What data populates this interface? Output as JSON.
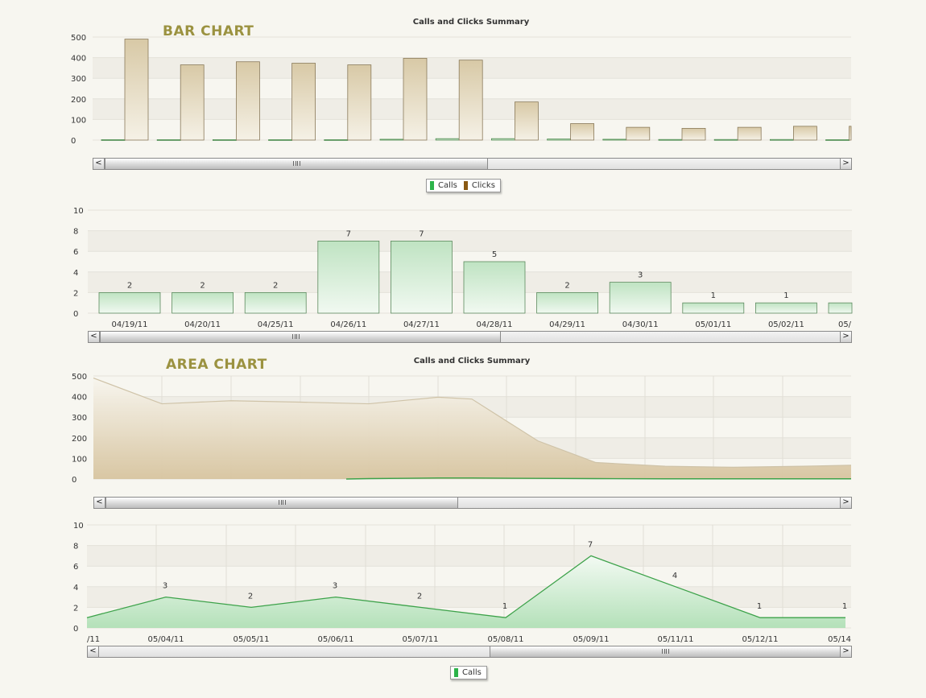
{
  "labels": {
    "bar_section": "BAR CHART",
    "area_section": "AREA CHART",
    "bar_title": "Calls and Clicks Summary",
    "area_title": "Calls and Clicks Summary"
  },
  "legend_top": [
    {
      "name": "Calls",
      "color": "#2db34a"
    },
    {
      "name": "Clicks",
      "color": "#8a5a14"
    }
  ],
  "legend_bottom": [
    {
      "name": "Calls",
      "color": "#2db34a"
    }
  ],
  "scroll": {
    "left_arrow": "<",
    "right_arrow": ">"
  },
  "chart_data": [
    {
      "type": "bar",
      "title": "Calls and Clicks Summary",
      "ylim": [
        0,
        500
      ],
      "yticks": [
        0,
        100,
        200,
        300,
        400,
        500
      ],
      "grid": true,
      "series": [
        {
          "name": "Calls",
          "color": "#2db34a",
          "values": [
            0,
            0,
            0,
            0,
            0,
            2,
            5,
            5,
            3,
            2,
            1,
            1,
            1,
            0
          ]
        },
        {
          "name": "Clicks",
          "color": "#8a5a14",
          "values": [
            490,
            365,
            380,
            373,
            365,
            397,
            388,
            185,
            80,
            62,
            57,
            62,
            67,
            67
          ]
        }
      ]
    },
    {
      "type": "bar",
      "ylim": [
        0,
        10
      ],
      "yticks": [
        0,
        2,
        4,
        6,
        8,
        10
      ],
      "grid": true,
      "categories": [
        "04/19/11",
        "04/20/11",
        "04/25/11",
        "04/26/11",
        "04/27/11",
        "04/28/11",
        "04/29/11",
        "04/30/11",
        "05/01/11",
        "05/02/11",
        "05/"
      ],
      "series": [
        {
          "name": "Calls",
          "values": [
            2,
            2,
            2,
            7,
            7,
            5,
            2,
            3,
            1,
            1,
            1
          ]
        }
      ],
      "data_labels": [
        "2",
        "2",
        "2",
        "7",
        "7",
        "5",
        "2",
        "3",
        "1",
        "1",
        ""
      ]
    },
    {
      "type": "area",
      "title": "Calls and Clicks Summary",
      "ylim": [
        0,
        500
      ],
      "yticks": [
        0,
        100,
        200,
        300,
        400,
        500
      ],
      "grid": true,
      "series": [
        {
          "name": "Clicks",
          "color": "#8a5a14",
          "values": [
            490,
            365,
            380,
            373,
            365,
            397,
            388,
            185,
            80,
            62,
            57,
            62,
            67
          ]
        },
        {
          "name": "Calls",
          "color": "#2db34a",
          "values": [
            null,
            null,
            null,
            0,
            2,
            5,
            5,
            3,
            2,
            1,
            1,
            1,
            1
          ]
        }
      ]
    },
    {
      "type": "area",
      "ylim": [
        0,
        10
      ],
      "yticks": [
        0,
        2,
        4,
        6,
        8,
        10
      ],
      "grid": true,
      "categories": [
        "/11",
        "05/04/11",
        "05/05/11",
        "05/06/11",
        "05/07/11",
        "05/08/11",
        "05/09/11",
        "05/11/11",
        "05/12/11",
        "05/14"
      ],
      "series": [
        {
          "name": "Calls",
          "values": [
            1,
            3,
            2,
            3,
            2,
            1,
            7,
            4,
            1,
            1
          ]
        }
      ],
      "data_labels": [
        "",
        "3",
        "2",
        "3",
        "2",
        "1",
        "7",
        "4",
        "1",
        "1"
      ]
    }
  ]
}
